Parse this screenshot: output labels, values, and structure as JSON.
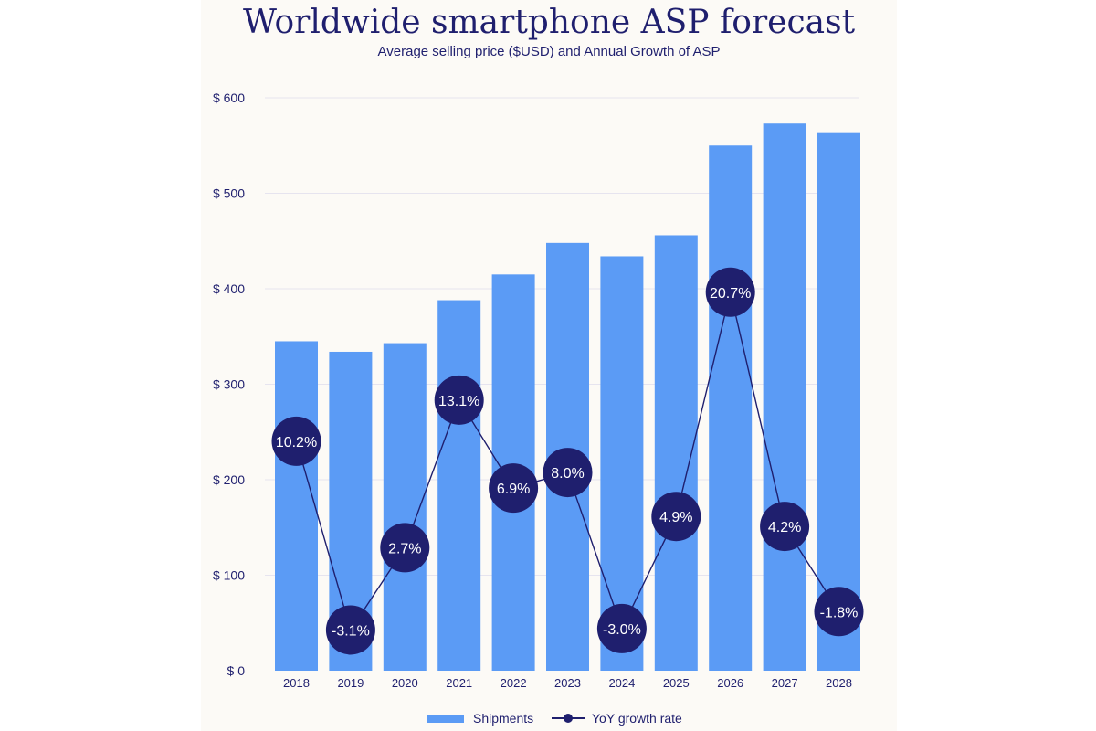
{
  "chart_data": {
    "type": "bar",
    "title": "Worldwide smartphone ASP forecast",
    "subtitle": "Average selling price ($USD) and Annual Growth of ASP",
    "categories": [
      "2018",
      "2019",
      "2020",
      "2021",
      "2022",
      "2023",
      "2024",
      "2025",
      "2026",
      "2027",
      "2028"
    ],
    "ylim": [
      0,
      600
    ],
    "yticks": [
      0,
      100,
      200,
      300,
      400,
      500,
      600
    ],
    "ytick_labels": [
      "$ 0",
      "$ 100",
      "$ 200",
      "$ 300",
      "$ 400",
      "$ 500",
      "$ 600"
    ],
    "grid": true,
    "series": [
      {
        "name": "Shipments",
        "type": "bar",
        "color": "#5b9bf5",
        "values": [
          345,
          334,
          343,
          388,
          415,
          448,
          434,
          456,
          550,
          573,
          563
        ]
      },
      {
        "name": "YoY growth rate",
        "type": "line",
        "color": "#1f1f6e",
        "values": [
          10.2,
          -3.1,
          2.7,
          13.1,
          6.9,
          8.0,
          -3.0,
          4.9,
          20.7,
          4.2,
          -1.8
        ],
        "labels": [
          "10.2%",
          "-3.1%",
          "2.7%",
          "13.1%",
          "6.9%",
          "8.0%",
          "-3.0%",
          "4.9%",
          "20.7%",
          "4.2%",
          "-1.8%"
        ]
      }
    ],
    "legend_position": "bottom"
  }
}
